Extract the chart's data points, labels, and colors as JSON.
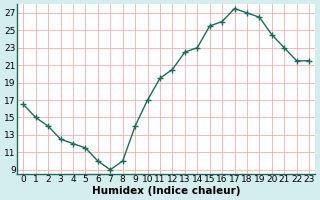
{
  "x": [
    0,
    1,
    2,
    3,
    4,
    5,
    6,
    7,
    8,
    9,
    10,
    11,
    12,
    13,
    14,
    15,
    16,
    17,
    18,
    19,
    20,
    21,
    22,
    23
  ],
  "y": [
    16.5,
    15.0,
    14.0,
    12.5,
    12.0,
    11.5,
    10.0,
    9.0,
    10.0,
    14.0,
    17.0,
    19.5,
    20.5,
    22.5,
    23.0,
    25.5,
    26.0,
    27.5,
    27.0,
    26.5,
    24.5,
    23.0,
    21.5,
    21.5
  ],
  "xlim": [
    -0.5,
    23.5
  ],
  "ylim": [
    8.5,
    28
  ],
  "yticks": [
    9,
    11,
    13,
    15,
    17,
    19,
    21,
    23,
    25,
    27
  ],
  "xtick_labels": [
    "0",
    "1",
    "2",
    "3",
    "4",
    "5",
    "6",
    "7",
    "8",
    "9",
    "10",
    "11",
    "12",
    "13",
    "14",
    "15",
    "16",
    "17",
    "18",
    "19",
    "20",
    "21",
    "22",
    "23"
  ],
  "xlabel": "Humidex (Indice chaleur)",
  "line_color": "#1a6b5a",
  "bg_color": "#d4eeed",
  "plot_bg_color": "#ffffff",
  "grid_color": "#f0b0b0",
  "marker": "+",
  "marker_size": 4,
  "line_width": 1.0,
  "xlabel_fontsize": 7.5,
  "tick_fontsize": 6.5,
  "marker_edge_width": 1.0
}
